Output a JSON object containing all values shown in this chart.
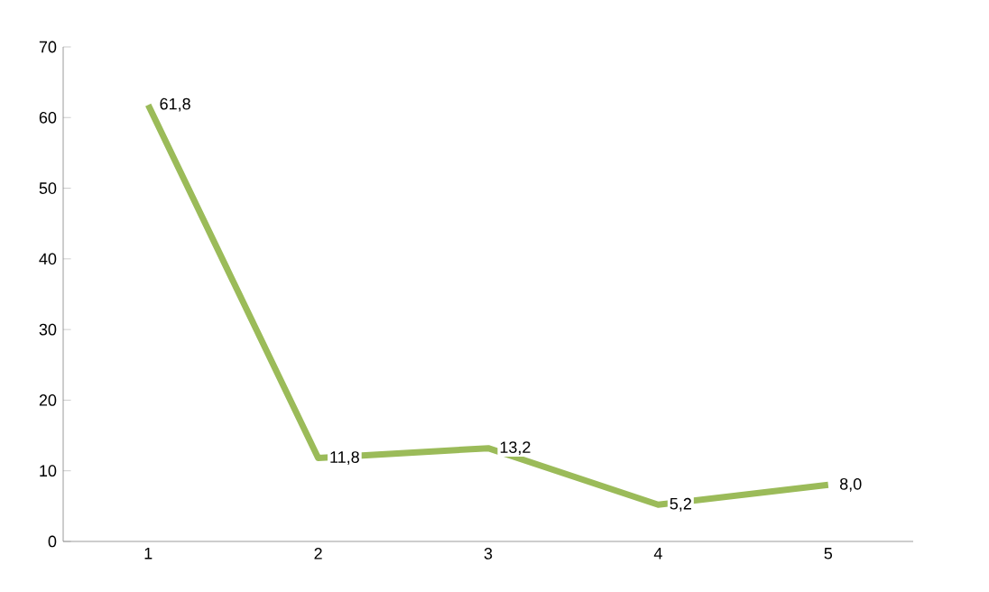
{
  "chart_data": {
    "type": "line",
    "categories": [
      "1",
      "2",
      "3",
      "4",
      "5"
    ],
    "values": [
      61.8,
      11.8,
      13.2,
      5.2,
      8.0
    ],
    "value_labels": [
      "61,8",
      "11,8",
      "13,2",
      "5,2",
      "8,0"
    ],
    "color": "#9bbb59",
    "ylim": [
      0,
      70
    ],
    "yticks": [
      0,
      10,
      20,
      30,
      40,
      50,
      60,
      70
    ],
    "grid": false,
    "marker": "none",
    "line_style": "solid"
  }
}
